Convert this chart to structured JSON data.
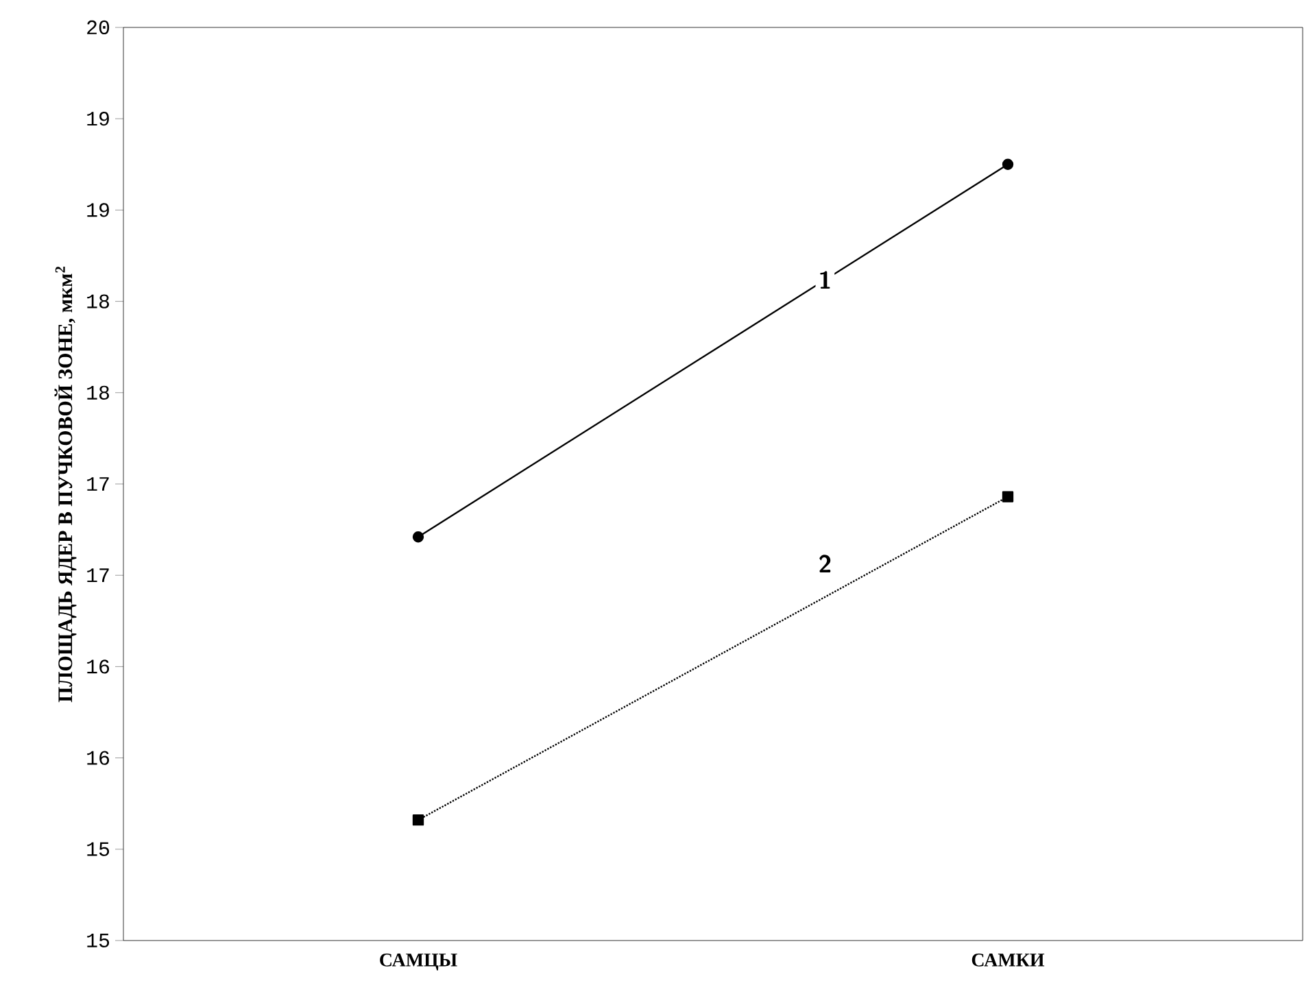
{
  "chart_data": {
    "type": "line",
    "ylabel": "**ПЛОЩАДЬ ЯДЕР В ПУЧКОВОЙ ЗОНЕ,** мкм$^{2}$",
    "categories": [
      "САМЦЫ",
      "САМКИ"
    ],
    "series": [
      {
        "name": "1",
        "color": "#000000",
        "values": [
          17.21,
          19.25
        ],
        "marker": "circle",
        "line_style": "solid"
      },
      {
        "name": "2",
        "color": "#000000",
        "values": [
          15.66,
          17.43
        ],
        "marker": "square",
        "line_style": "dotted"
      }
    ],
    "ylim": [
      15,
      20
    ],
    "yticks": [
      15,
      {
        "value": 15.5,
        "label": "15"
      },
      16,
      {
        "value": 16.5,
        "label": "16"
      },
      17,
      {
        "value": 17.5,
        "label": "17"
      },
      18,
      {
        "value": 18.5,
        "label": "18"
      },
      19,
      {
        "value": 19.5,
        "label": "19"
      },
      20
    ],
    "grid": false,
    "legend": false
  }
}
